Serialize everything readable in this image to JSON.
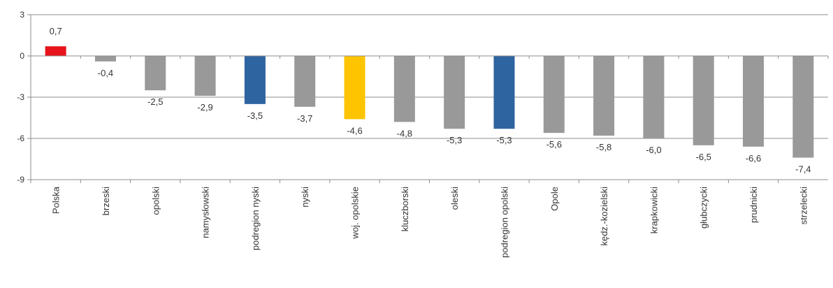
{
  "chart_data": {
    "type": "bar",
    "title": "",
    "xlabel": "",
    "ylabel": "",
    "ylim": [
      -9,
      3
    ],
    "yticks": [
      3,
      0,
      -3,
      -6,
      -9
    ],
    "ytick_labels": [
      "3",
      "0",
      "-3",
      "-6",
      "-9"
    ],
    "grid": true,
    "legend": "none",
    "categories": [
      "Polska",
      "brzeski",
      "opolski",
      "namysłowski",
      "podregion nyski",
      "nyski",
      "woj. opolskie",
      "kluczborski",
      "oleski",
      "podregion opolski",
      "Opole",
      "kędz.-kozielski",
      "krapkowicki",
      "głubczycki",
      "prudnicki",
      "strzelecki"
    ],
    "values": [
      0.7,
      -0.4,
      -2.5,
      -2.9,
      -3.5,
      -3.7,
      -4.6,
      -4.8,
      -5.3,
      -5.3,
      -5.6,
      -5.8,
      -6.0,
      -6.5,
      -6.6,
      -7.4
    ],
    "value_labels": [
      "0,7",
      "-0,4",
      "-2,5",
      "-2,9",
      "-3,5",
      "-3,7",
      "-4,6",
      "-4,8",
      "-5,3",
      "-5,3",
      "-5,6",
      "-5,8",
      "-6,0",
      "-6,5",
      "-6,6",
      "-7,4"
    ],
    "colors": [
      "#e8141b",
      "#999999",
      "#999999",
      "#999999",
      "#2e64a0",
      "#999999",
      "#ffc400",
      "#999999",
      "#999999",
      "#2e64a0",
      "#999999",
      "#999999",
      "#999999",
      "#999999",
      "#999999",
      "#999999"
    ]
  }
}
